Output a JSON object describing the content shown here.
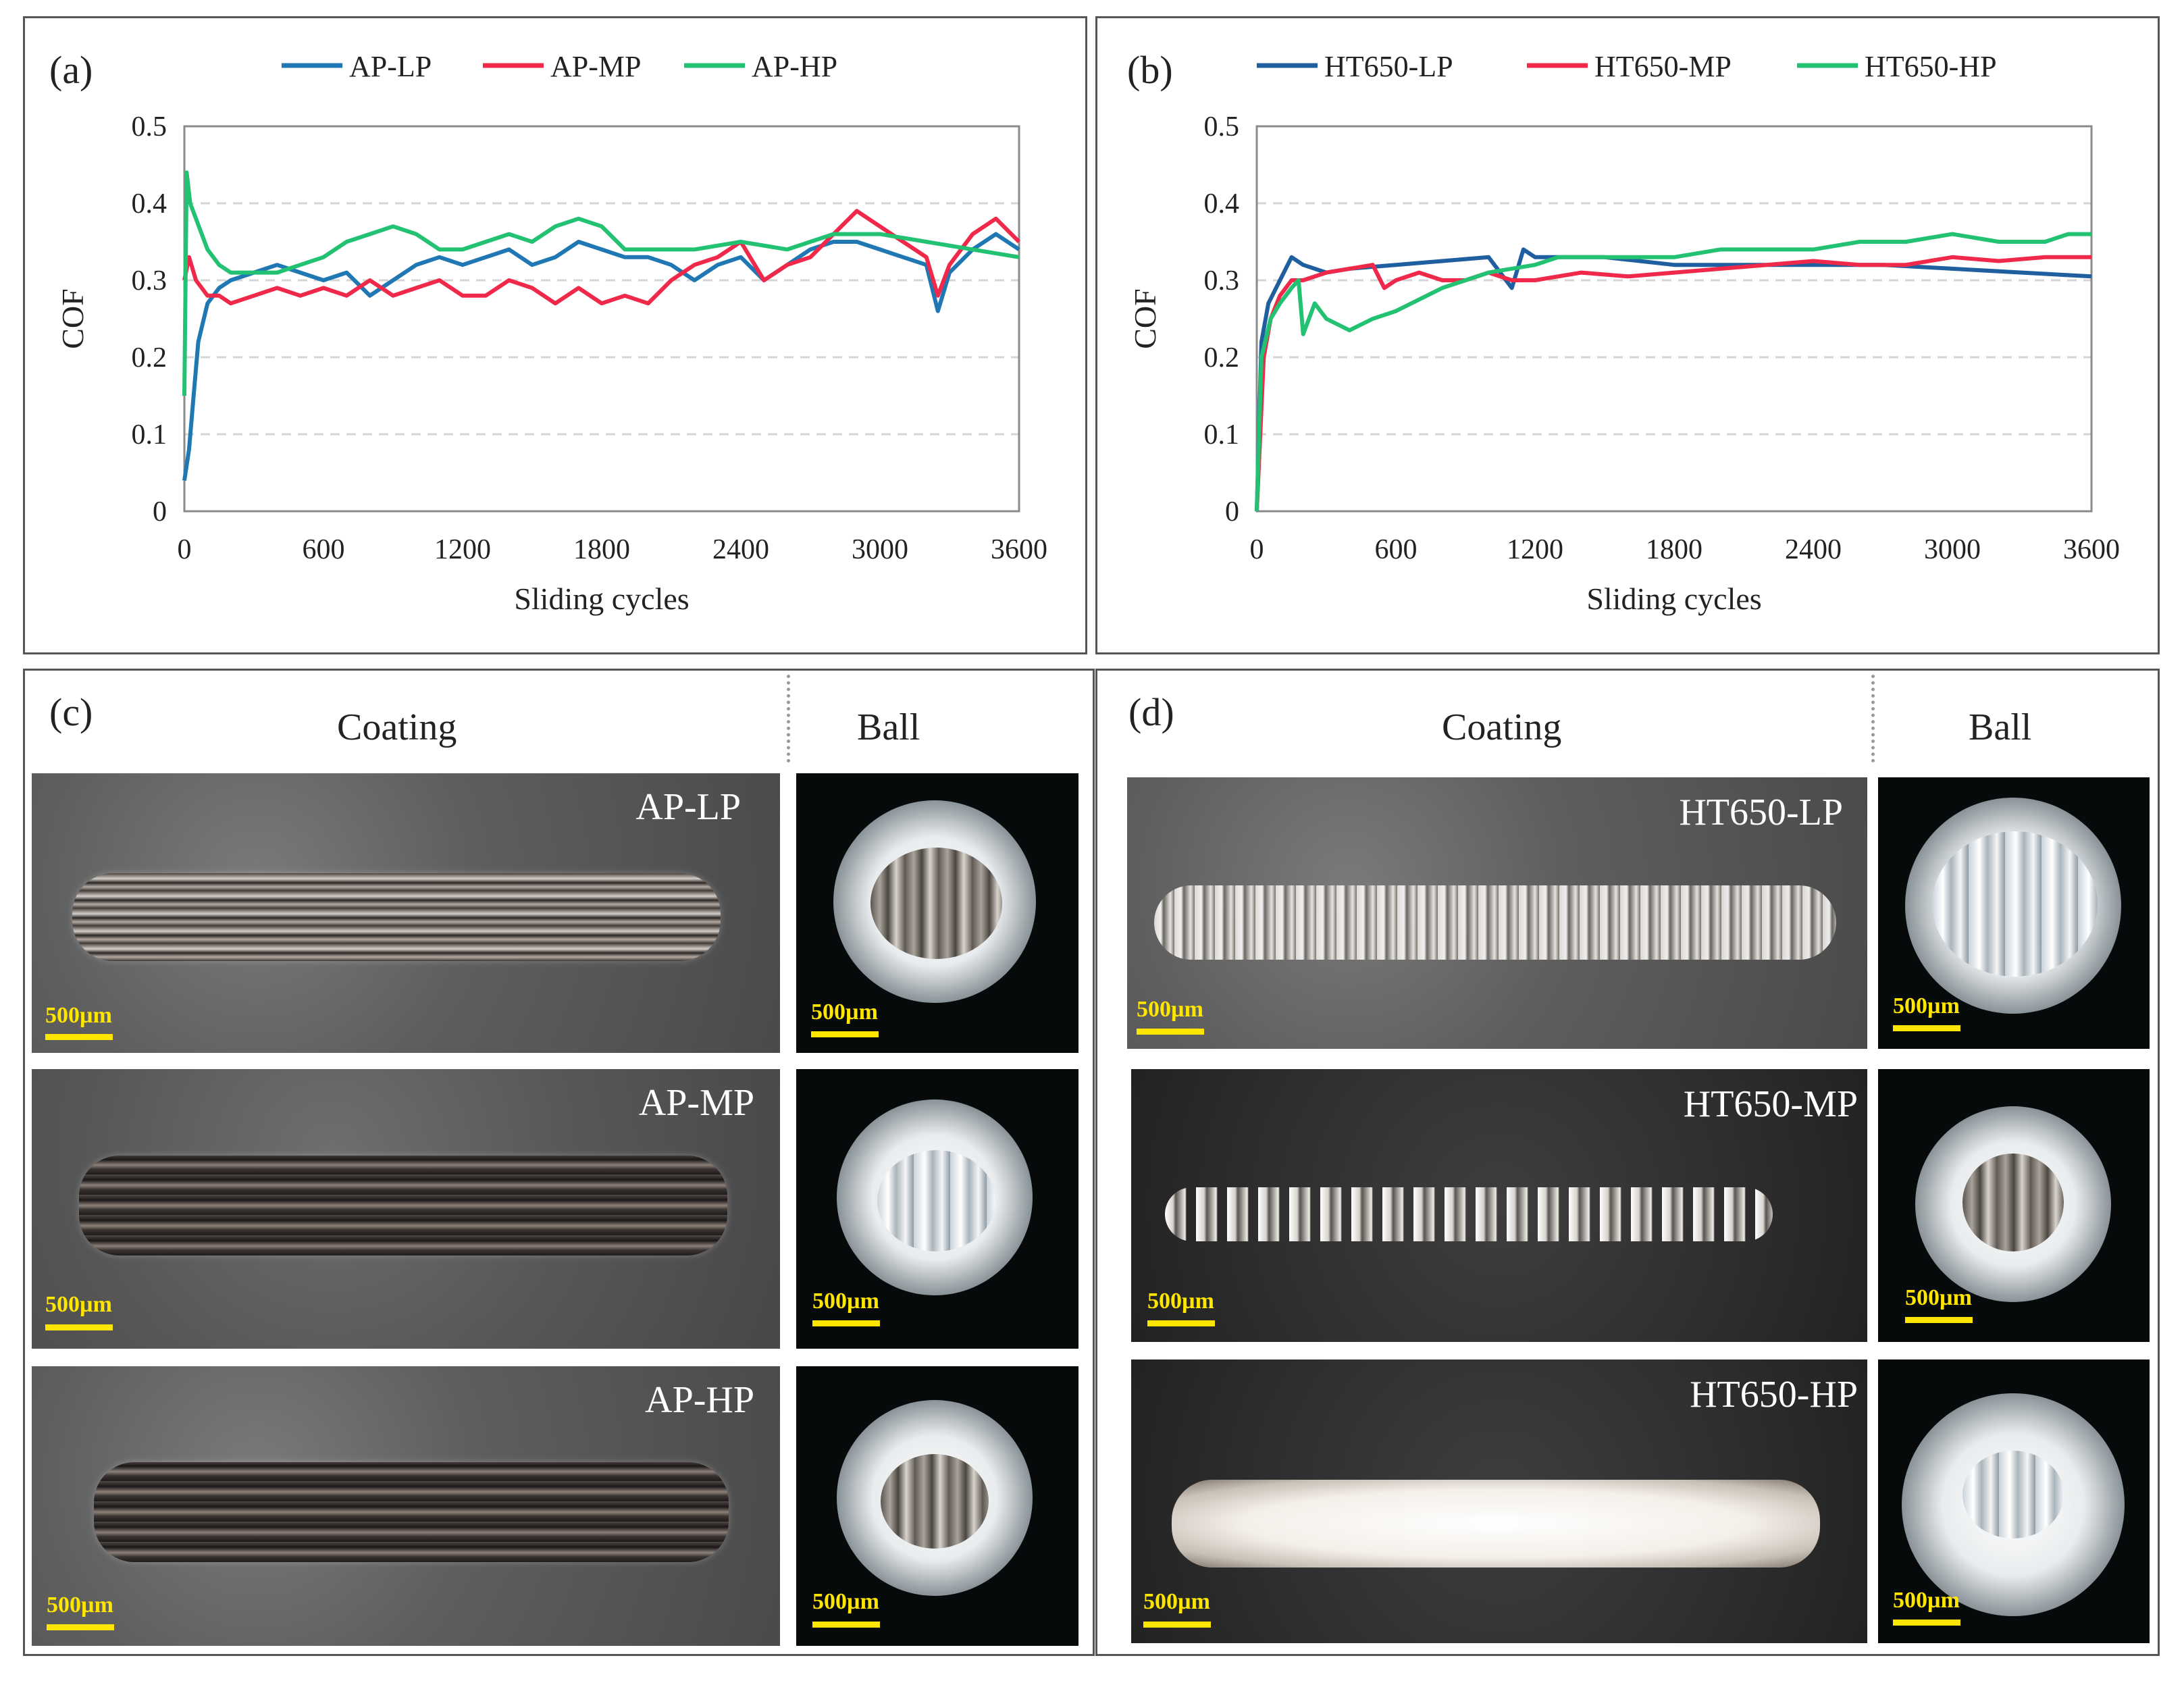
{
  "chart_data": [
    {
      "panel": "(a)",
      "type": "line",
      "xlabel": "Sliding cycles",
      "ylabel": "COF",
      "xlim": [
        0,
        3600
      ],
      "ylim": [
        0,
        0.5
      ],
      "xticks": [
        0,
        600,
        1200,
        1800,
        2400,
        3000,
        3600
      ],
      "yticks": [
        0,
        0.1,
        0.2,
        0.3,
        0.4,
        0.5
      ],
      "grid": "horizontal dashed",
      "legend": "top",
      "series": [
        {
          "name": "AP-LP",
          "color": "#1f77b4",
          "x": [
            0,
            20,
            40,
            60,
            100,
            150,
            200,
            300,
            400,
            500,
            600,
            700,
            800,
            900,
            1000,
            1100,
            1200,
            1300,
            1400,
            1500,
            1600,
            1700,
            1800,
            1900,
            2000,
            2100,
            2200,
            2300,
            2400,
            2500,
            2600,
            2700,
            2800,
            2900,
            3000,
            3100,
            3200,
            3250,
            3300,
            3400,
            3500,
            3600
          ],
          "y": [
            0.04,
            0.08,
            0.15,
            0.22,
            0.27,
            0.29,
            0.3,
            0.31,
            0.32,
            0.31,
            0.3,
            0.31,
            0.28,
            0.3,
            0.32,
            0.33,
            0.32,
            0.33,
            0.34,
            0.32,
            0.33,
            0.35,
            0.34,
            0.33,
            0.33,
            0.32,
            0.3,
            0.32,
            0.33,
            0.3,
            0.32,
            0.34,
            0.35,
            0.35,
            0.34,
            0.33,
            0.32,
            0.26,
            0.31,
            0.34,
            0.36,
            0.34
          ]
        },
        {
          "name": "AP-MP",
          "color": "#f0284a",
          "x": [
            0,
            20,
            50,
            100,
            150,
            200,
            300,
            400,
            500,
            600,
            700,
            800,
            900,
            1000,
            1100,
            1200,
            1300,
            1400,
            1500,
            1600,
            1700,
            1800,
            1900,
            2000,
            2100,
            2200,
            2300,
            2400,
            2500,
            2600,
            2700,
            2800,
            2900,
            3000,
            3100,
            3200,
            3250,
            3300,
            3400,
            3500,
            3600
          ],
          "y": [
            0.3,
            0.33,
            0.3,
            0.28,
            0.28,
            0.27,
            0.28,
            0.29,
            0.28,
            0.29,
            0.28,
            0.3,
            0.28,
            0.29,
            0.3,
            0.28,
            0.28,
            0.3,
            0.29,
            0.27,
            0.29,
            0.27,
            0.28,
            0.27,
            0.3,
            0.32,
            0.33,
            0.35,
            0.3,
            0.32,
            0.33,
            0.36,
            0.39,
            0.37,
            0.35,
            0.33,
            0.28,
            0.32,
            0.36,
            0.38,
            0.35
          ]
        },
        {
          "name": "AP-HP",
          "color": "#22c272",
          "x": [
            0,
            10,
            25,
            50,
            100,
            150,
            200,
            300,
            400,
            500,
            600,
            700,
            800,
            900,
            1000,
            1100,
            1200,
            1300,
            1400,
            1500,
            1600,
            1700,
            1800,
            1900,
            2000,
            2200,
            2400,
            2600,
            2800,
            3000,
            3200,
            3400,
            3600
          ],
          "y": [
            0.15,
            0.44,
            0.4,
            0.38,
            0.34,
            0.32,
            0.31,
            0.31,
            0.31,
            0.32,
            0.33,
            0.35,
            0.36,
            0.37,
            0.36,
            0.34,
            0.34,
            0.35,
            0.36,
            0.35,
            0.37,
            0.38,
            0.37,
            0.34,
            0.34,
            0.34,
            0.35,
            0.34,
            0.36,
            0.36,
            0.35,
            0.34,
            0.33
          ]
        }
      ]
    },
    {
      "panel": "(b)",
      "type": "line",
      "xlabel": "Sliding cycles",
      "ylabel": "COF",
      "xlim": [
        0,
        3600
      ],
      "ylim": [
        0,
        0.5
      ],
      "xticks": [
        0,
        600,
        1200,
        1800,
        2400,
        3000,
        3600
      ],
      "yticks": [
        0,
        0.1,
        0.2,
        0.3,
        0.4,
        0.5
      ],
      "grid": "horizontal dashed",
      "legend": "top",
      "series": [
        {
          "name": "HT650-LP",
          "color": "#1f5fa0",
          "x": [
            0,
            20,
            50,
            100,
            150,
            200,
            300,
            400,
            600,
            800,
            1000,
            1100,
            1150,
            1200,
            1300,
            1500,
            1800,
            2100,
            2400,
            2700,
            3000,
            3300,
            3600
          ],
          "y": [
            0.0,
            0.22,
            0.27,
            0.3,
            0.33,
            0.32,
            0.31,
            0.315,
            0.32,
            0.325,
            0.33,
            0.29,
            0.34,
            0.33,
            0.33,
            0.33,
            0.32,
            0.32,
            0.32,
            0.32,
            0.315,
            0.31,
            0.305
          ]
        },
        {
          "name": "HT650-MP",
          "color": "#f0284a",
          "x": [
            0,
            30,
            60,
            100,
            150,
            200,
            300,
            400,
            500,
            550,
            600,
            700,
            800,
            900,
            1000,
            1100,
            1200,
            1400,
            1600,
            1800,
            2000,
            2200,
            2400,
            2600,
            2800,
            3000,
            3200,
            3400,
            3600
          ],
          "y": [
            0.0,
            0.2,
            0.25,
            0.28,
            0.3,
            0.3,
            0.31,
            0.315,
            0.32,
            0.29,
            0.3,
            0.31,
            0.3,
            0.3,
            0.31,
            0.3,
            0.3,
            0.31,
            0.305,
            0.31,
            0.315,
            0.32,
            0.325,
            0.32,
            0.32,
            0.33,
            0.325,
            0.33,
            0.33
          ]
        },
        {
          "name": "HT650-HP",
          "color": "#22c272",
          "x": [
            0,
            20,
            60,
            100,
            150,
            180,
            200,
            250,
            300,
            400,
            500,
            600,
            800,
            1000,
            1200,
            1300,
            1400,
            1600,
            1800,
            2000,
            2200,
            2400,
            2600,
            2800,
            3000,
            3200,
            3400,
            3500,
            3600
          ],
          "y": [
            0.0,
            0.2,
            0.25,
            0.27,
            0.29,
            0.3,
            0.23,
            0.27,
            0.25,
            0.235,
            0.25,
            0.26,
            0.29,
            0.31,
            0.32,
            0.33,
            0.33,
            0.33,
            0.33,
            0.34,
            0.34,
            0.34,
            0.35,
            0.35,
            0.36,
            0.35,
            0.35,
            0.36,
            0.36
          ]
        }
      ]
    }
  ],
  "panels": {
    "c": {
      "label": "(c)",
      "coating_header": "Coating",
      "ball_header": "Ball",
      "rows": [
        {
          "name": "AP-LP",
          "scale": "500µm",
          "ball_scale": "500µm"
        },
        {
          "name": "AP-MP",
          "scale": "500µm",
          "ball_scale": "500µm"
        },
        {
          "name": "AP-HP",
          "scale": "500µm",
          "ball_scale": "500µm"
        }
      ]
    },
    "d": {
      "label": "(d)",
      "coating_header": "Coating",
      "ball_header": "Ball",
      "rows": [
        {
          "name": "HT650-LP",
          "scale": "500µm",
          "ball_scale": "500µm"
        },
        {
          "name": "HT650-MP",
          "scale": "500µm",
          "ball_scale": "500µm"
        },
        {
          "name": "HT650-HP",
          "scale": "500µm",
          "ball_scale": "500µm"
        }
      ]
    }
  }
}
